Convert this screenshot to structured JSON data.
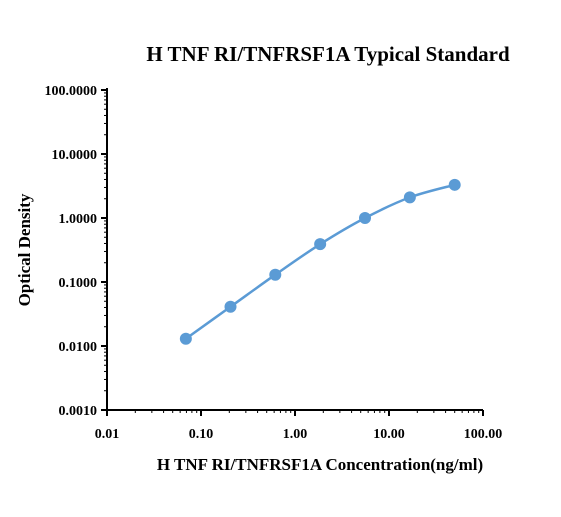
{
  "chart_data": {
    "type": "line",
    "title": "H TNF RI/TNFRSF1A Typical Standard",
    "xlabel": "H TNF RI/TNFRSF1A Concentration(ng/ml)",
    "ylabel": "Optical Density",
    "x_scale": "log",
    "y_scale": "log",
    "xlim": [
      0.01,
      100
    ],
    "ylim": [
      0.001,
      100
    ],
    "x_ticks": [
      0.01,
      0.1,
      1,
      10,
      100
    ],
    "x_tick_labels": [
      "0.01",
      "0.10",
      "1.00",
      "10.00",
      "100.00"
    ],
    "y_ticks": [
      0.001,
      0.01,
      0.1,
      1,
      10,
      100
    ],
    "y_tick_labels": [
      "0.0010",
      "0.0100",
      "0.1000",
      "1.0000",
      "10.0000",
      "100.0000"
    ],
    "grid": false,
    "series": [
      {
        "color": "#5b9bd5",
        "x": [
          0.069,
          0.206,
          0.617,
          1.852,
          5.556,
          16.667,
          50.0
        ],
        "y": [
          0.013,
          0.041,
          0.13,
          0.39,
          1.0,
          2.1,
          3.3
        ]
      }
    ]
  }
}
